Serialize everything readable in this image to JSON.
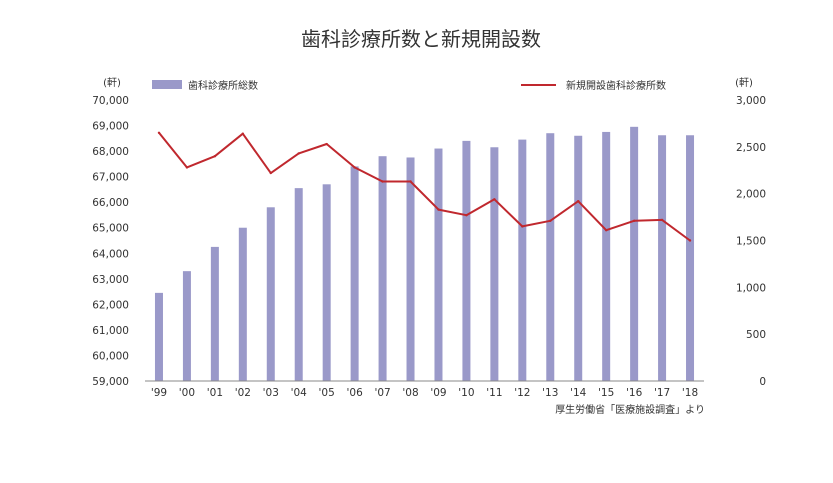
{
  "chart_data": {
    "type": "bar+line",
    "title": "歯科診療所数と新規開設数",
    "categories": [
      "'99",
      "'00",
      "'01",
      "'02",
      "'03",
      "'04",
      "'05",
      "'06",
      "'07",
      "'08",
      "'09",
      "'10",
      "'11",
      "'12",
      "'13",
      "'14",
      "'15",
      "'16",
      "'17",
      "'18"
    ],
    "series": [
      {
        "name": "歯科診療所総数",
        "type": "bar",
        "axis": "left",
        "color": "#9a99c9",
        "values": [
          62450,
          63300,
          64250,
          65000,
          65800,
          66550,
          66700,
          67400,
          67800,
          67750,
          68100,
          68400,
          68150,
          68450,
          68700,
          68600,
          68750,
          68950,
          68620,
          68620
        ]
      },
      {
        "name": "新規開設歯科診療所数",
        "type": "line",
        "axis": "right",
        "color": "#c0282e",
        "values": [
          2650,
          2280,
          2400,
          2640,
          2220,
          2430,
          2530,
          2280,
          2130,
          2130,
          1830,
          1770,
          1940,
          1650,
          1710,
          1920,
          1610,
          1710,
          1720,
          1500
        ]
      }
    ],
    "left_axis": {
      "unit": "(軒)",
      "ylim": [
        59000,
        70000
      ],
      "tick_values": [
        59000,
        60000,
        61000,
        62000,
        63000,
        64000,
        65000,
        66000,
        67000,
        68000,
        69000,
        70000
      ],
      "tick_labels": [
        "59,000",
        "60,000",
        "61,000",
        "62,000",
        "63,000",
        "64,000",
        "65,000",
        "66,000",
        "67,000",
        "68,000",
        "69,000",
        "70,000"
      ]
    },
    "right_axis": {
      "unit": "(軒)",
      "ylim": [
        0,
        3000
      ],
      "tick_values": [
        0,
        500,
        1000,
        1500,
        2000,
        2500,
        3000
      ],
      "tick_labels": [
        "0",
        "500",
        "1,000",
        "1,500",
        "2,000",
        "2,500",
        "3,000"
      ]
    },
    "grid": false,
    "legend": "top",
    "source": "厚生労働省「医療施設調査」より"
  }
}
